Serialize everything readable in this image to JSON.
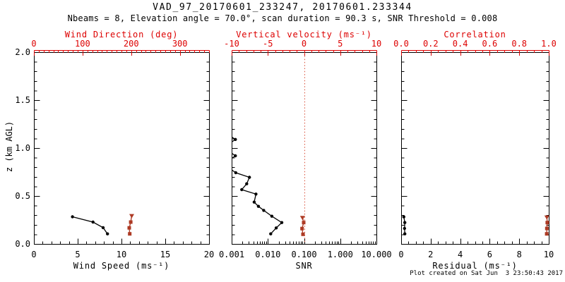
{
  "header": {
    "title": "VAD_97_20170601_233247, 20170601.233344",
    "subtitle": "Nbeams = 8, Elevation angle = 70.0°, scan duration = 90.3 s, SNR Threshold = 0.008"
  },
  "footer": {
    "credit": "Plot created on Sat Jun  3 23:50:43 2017"
  },
  "colors": {
    "axis_red": "#dd0000",
    "marker_red": "#ad3a24",
    "ref_line_red": "#d9503a",
    "black": "#000000"
  },
  "chart_data": {
    "type": "line",
    "y_axis": {
      "label": "z (km AGL)",
      "range": [
        0.0,
        2.0
      ],
      "tick_values": [
        0.0,
        0.5,
        1.0,
        1.5,
        2.0
      ],
      "tick_labels": [
        "0.0",
        "0.5",
        "1.0",
        "1.5",
        "2.0"
      ],
      "minor_step": 0.1
    },
    "panels": [
      {
        "id": "wind-speed-panel",
        "bottom_axis": {
          "label": "Wind Speed (ms⁻¹)",
          "range": [
            0,
            20
          ],
          "tick_values": [
            0,
            5,
            10,
            15,
            20
          ],
          "tick_labels": [
            "0",
            "5",
            "10",
            "15",
            "20"
          ],
          "minor_step": 1
        },
        "top_axis": {
          "label": "Wind Direction (deg)",
          "range": [
            0,
            360
          ],
          "tick_values": [
            0,
            100,
            200,
            300
          ],
          "tick_labels": [
            "0",
            "100",
            "200",
            "300"
          ],
          "minor_step": 10
        },
        "series": [
          {
            "name": "wind-speed-profile",
            "axis": "bottom",
            "color": "black",
            "marker": "circle",
            "points": [
              [
                4.4,
                0.283
              ],
              [
                6.75,
                0.228
              ],
              [
                7.9,
                0.17
              ],
              [
                8.4,
                0.105
              ]
            ]
          },
          {
            "name": "wind-direction-profile",
            "axis": "top",
            "color": "marker_red",
            "marker": "square",
            "first_marker": "triangle-down",
            "points": [
              [
                201,
                0.297
              ],
              [
                199,
                0.228
              ],
              [
                196,
                0.168
              ],
              [
                197,
                0.105
              ]
            ]
          }
        ]
      },
      {
        "id": "snr-panel",
        "bottom_axis": {
          "label": "SNR",
          "scale": "log",
          "range": [
            0.001,
            10
          ],
          "tick_values": [
            0.001,
            0.01,
            0.1,
            1,
            10
          ],
          "tick_labels": [
            "0.001",
            "0.010",
            "0.100",
            "1.000",
            "10.000"
          ]
        },
        "top_axis": {
          "label": "Vertical velocity (ms⁻¹)",
          "range": [
            -10,
            10
          ],
          "tick_values": [
            -10,
            -5,
            0,
            5,
            10
          ],
          "tick_labels": [
            "-10",
            "-5",
            "0",
            "5",
            "10"
          ],
          "minor_step": 1
        },
        "ref_line": {
          "axis": "top",
          "value": 0,
          "style": "dotted"
        },
        "series": [
          {
            "name": "snr-profile",
            "axis": "bottom",
            "color": "black",
            "marker": "circle",
            "points": [
              [
                0.0007,
                1.155
              ],
              [
                0.00127,
                1.09
              ],
              [
                0.0006,
                1.005
              ],
              [
                0.00127,
                0.919
              ],
              [
                0.0006,
                0.832
              ],
              [
                0.0013,
                0.743
              ],
              [
                0.0031,
                0.695
              ],
              [
                0.0026,
                0.627
              ],
              [
                0.0019,
                0.566
              ],
              [
                0.0047,
                0.52
              ],
              [
                0.0042,
                0.436
              ],
              [
                0.0055,
                0.392
              ],
              [
                0.0077,
                0.35
              ],
              [
                0.0129,
                0.289
              ],
              [
                0.0243,
                0.223
              ],
              [
                0.017,
                0.167
              ],
              [
                0.012,
                0.105
              ]
            ]
          },
          {
            "name": "vertical-velocity-profile",
            "axis": "top",
            "color": "marker_red",
            "marker": "square",
            "first_marker": "triangle-down",
            "points": [
              [
                -0.21,
                0.277
              ],
              [
                -0.05,
                0.223
              ],
              [
                -0.27,
                0.16
              ],
              [
                -0.15,
                0.101
              ]
            ]
          }
        ]
      },
      {
        "id": "residual-panel",
        "bottom_axis": {
          "label": "Residual (ms⁻¹)",
          "range": [
            0,
            10
          ],
          "tick_values": [
            0,
            2,
            4,
            6,
            8,
            10
          ],
          "tick_labels": [
            "0",
            "2",
            "4",
            "6",
            "8",
            "10"
          ],
          "minor_step": 0.5
        },
        "top_axis": {
          "label": "Correlation",
          "range": [
            0,
            1
          ],
          "tick_values": [
            0,
            0.2,
            0.4,
            0.6,
            0.8,
            1.0
          ],
          "tick_labels": [
            "0.0",
            "0.2",
            "0.4",
            "0.6",
            "0.8",
            "1.0"
          ],
          "minor_step": 0.05
        },
        "series": [
          {
            "name": "residual-profile",
            "axis": "bottom",
            "color": "black",
            "marker": "circle",
            "points": [
              [
                0.18,
                0.282
              ],
              [
                0.25,
                0.223
              ],
              [
                0.23,
                0.162
              ],
              [
                0.25,
                0.105
              ]
            ]
          },
          {
            "name": "correlation-profile",
            "axis": "top",
            "color": "marker_red",
            "marker": "square",
            "first_marker": "triangle-down",
            "points": [
              [
                0.987,
                0.282
              ],
              [
                0.99,
                0.223
              ],
              [
                0.987,
                0.162
              ],
              [
                0.986,
                0.105
              ]
            ]
          }
        ]
      }
    ]
  }
}
